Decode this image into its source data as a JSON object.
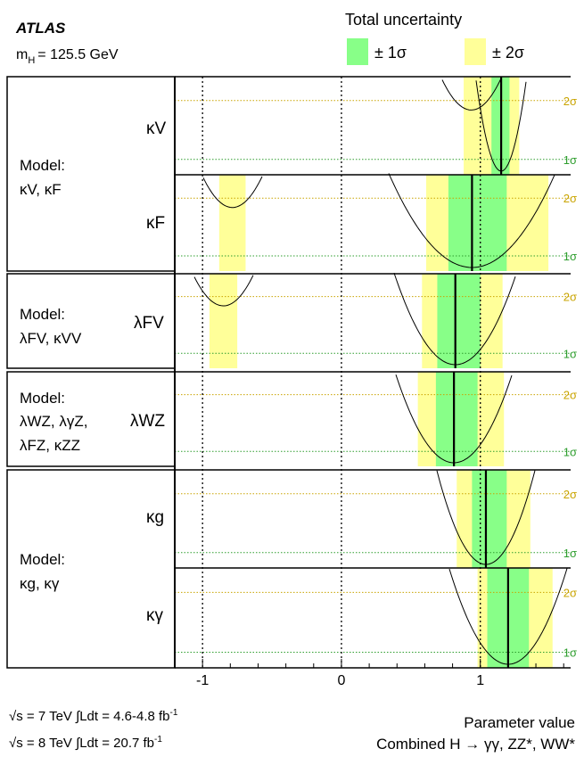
{
  "header": {
    "experiment": "ATLAS",
    "mass_label": "= 125.5 GeV",
    "legend_title": "Total uncertainty",
    "legend_1sigma": "± 1σ",
    "legend_2sigma": "± 2σ"
  },
  "colors": {
    "one_sigma": "#88ff88",
    "two_sigma": "#ffff99",
    "one_sigma_line": "#2e9e2e",
    "two_sigma_line": "#c9a400"
  },
  "models": [
    {
      "label_line1": "Model:",
      "label_line2": "κV, κF"
    },
    {
      "label_line1": "Model:",
      "label_line2": "λFV, κVV"
    },
    {
      "label_line1": "Model:",
      "label_line2": "λWZ, λγZ,",
      "label_line3": "λFZ, κZZ"
    },
    {
      "label_line1": "Model:",
      "label_line2": "κg, κγ"
    }
  ],
  "sigma_labels": {
    "one": "1σ",
    "two": "2σ"
  },
  "footer": {
    "sqrt_s_7": "= 7 TeV",
    "lumi_7": "Ldt = 4.6-4.8 fb",
    "sqrt_s_8": "= 8 TeV",
    "lumi_8": "Ldt = 20.7 fb",
    "lumi_unit_exp": "-1",
    "xlabel": "Parameter value",
    "combined": "Combined H → γγ, ZZ*, WW*"
  },
  "chart_data": {
    "type": "likelihood-scan",
    "xlim": [
      -1.2,
      1.65
    ],
    "x_ticks": [
      -1,
      0,
      1
    ],
    "x_tick_labels": [
      "-1",
      "0",
      "1"
    ],
    "panels": [
      {
        "parameter": "κV",
        "best_fit": 1.15,
        "one_sigma": [
          1.08,
          1.21
        ],
        "two_sigma": [
          0.98,
          1.28
        ],
        "extra_two_sigma": [
          0.88,
          0.99
        ]
      },
      {
        "parameter": "κF",
        "best_fit": 0.94,
        "one_sigma": [
          0.77,
          1.19
        ],
        "two_sigma": [
          0.61,
          1.49
        ],
        "extra_two_sigma": [
          -0.88,
          -0.69
        ]
      },
      {
        "parameter": "λFV",
        "best_fit": 0.82,
        "one_sigma": [
          0.69,
          1.0
        ],
        "two_sigma": [
          0.58,
          1.16
        ],
        "extra_two_sigma": [
          -0.95,
          -0.75
        ]
      },
      {
        "parameter": "λWZ",
        "best_fit": 0.81,
        "one_sigma": [
          0.68,
          0.98
        ],
        "two_sigma": [
          0.55,
          1.17
        ]
      },
      {
        "parameter": "κg",
        "best_fit": 1.04,
        "one_sigma": [
          0.94,
          1.19
        ],
        "two_sigma": [
          0.83,
          1.36
        ]
      },
      {
        "parameter": "κγ",
        "best_fit": 1.2,
        "one_sigma": [
          1.05,
          1.35
        ],
        "two_sigma": [
          0.98,
          1.52
        ]
      }
    ]
  }
}
